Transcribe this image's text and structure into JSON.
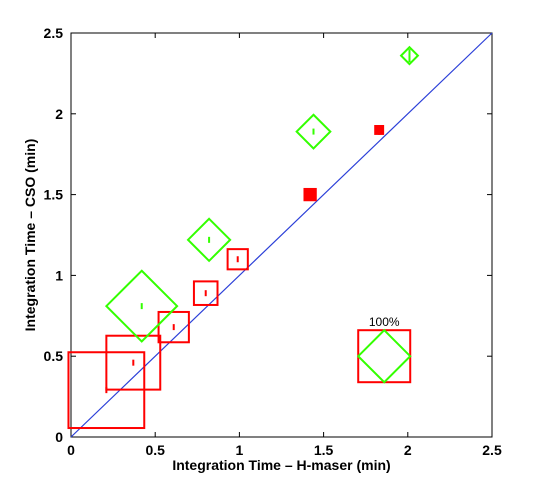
{
  "chart_data": {
    "type": "scatter",
    "title": "",
    "xlabel": "Integration Time – H-maser (min)",
    "ylabel": "Integration Time – CSO (min)",
    "xlim": [
      0,
      2.5
    ],
    "ylim": [
      0,
      2.5
    ],
    "x_ticks": [
      "0",
      "0.5",
      "1",
      "1.5",
      "2",
      "2.5"
    ],
    "y_ticks": [
      "0",
      "0.5",
      "1",
      "1.5",
      "2",
      "2.5"
    ],
    "grid": false,
    "reference_line": {
      "from": [
        0,
        0
      ],
      "to": [
        2.5,
        2.5
      ],
      "color": "#2b3fd8"
    },
    "series": [
      {
        "marker": "square",
        "color": "#ff0000",
        "points": [
          {
            "x": 0.21,
            "y": 0.29,
            "yerr": 0.01,
            "size": 0.45
          },
          {
            "x": 0.37,
            "y": 0.46,
            "yerr": 0.01,
            "size": 0.32
          },
          {
            "x": 0.61,
            "y": 0.68,
            "yerr": 0.01,
            "size": 0.18
          },
          {
            "x": 0.8,
            "y": 0.89,
            "yerr": 0.01,
            "size": 0.14
          },
          {
            "x": 0.99,
            "y": 1.1,
            "yerr": 0.01,
            "size": 0.12
          },
          {
            "x": 1.42,
            "y": 1.5,
            "yerr": 0.02,
            "size": 0.07
          },
          {
            "x": 1.83,
            "y": 1.9,
            "yerr": 0.03,
            "size": 0.05
          }
        ]
      },
      {
        "marker": "diamond",
        "color": "#33ff00",
        "points": [
          {
            "x": 0.42,
            "y": 0.81,
            "yerr": 0.01,
            "size": 0.42
          },
          {
            "x": 0.82,
            "y": 1.22,
            "yerr": 0.01,
            "size": 0.25
          },
          {
            "x": 1.44,
            "y": 1.89,
            "yerr": 0.01,
            "size": 0.2
          },
          {
            "x": 2.01,
            "y": 2.36,
            "yerr": 0.04,
            "size": 0.1
          }
        ]
      }
    ],
    "size_legend": {
      "label": "100%",
      "center": [
        1.86,
        0.5
      ],
      "square_color": "#ff0000",
      "diamond_color": "#33ff00"
    }
  }
}
